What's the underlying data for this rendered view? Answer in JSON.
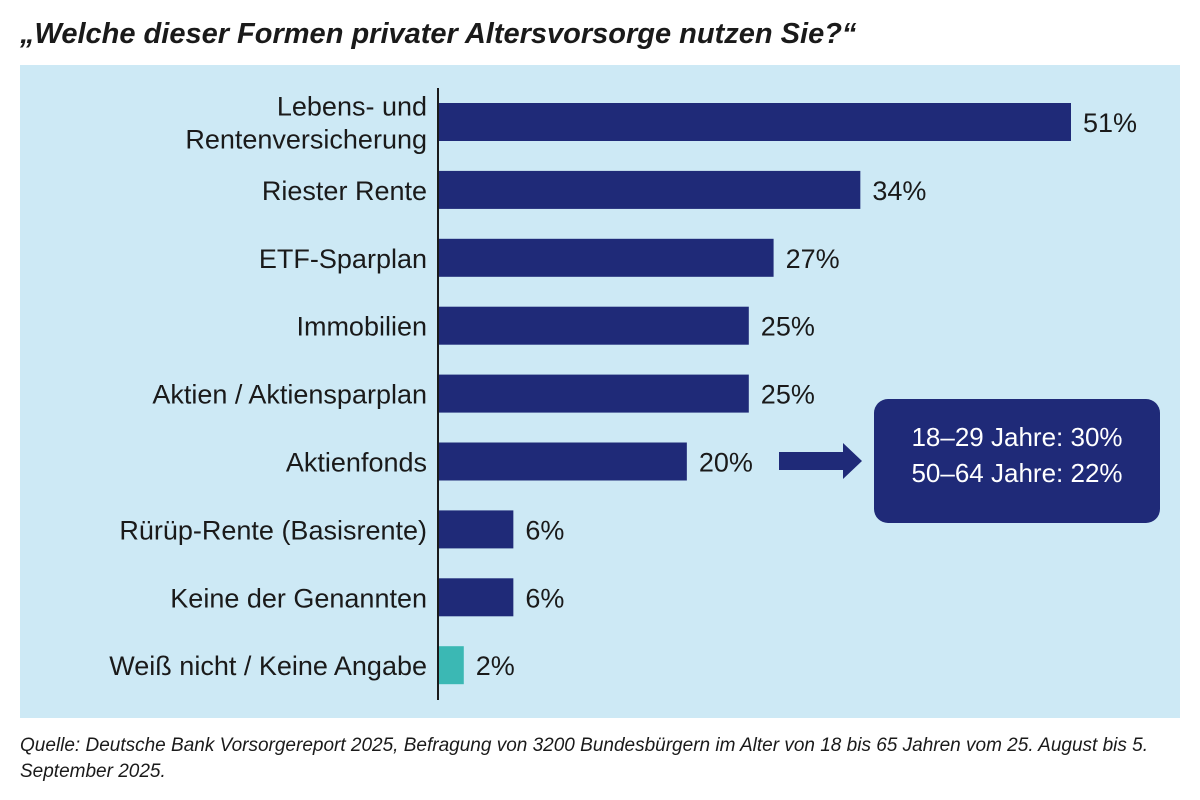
{
  "title": "„Welche dieser Formen privater Altersvorsorge nutzen Sie?“",
  "source": "Quelle: Deutsche Bank Vorsorgereport 2025, Befragung von 3200 Bundesbürgern im Alter von 18 bis 65 Jahren vom 25. August bis 5. September 2025.",
  "callout": {
    "line1": "18–29 Jahre: 30%",
    "line2": "50–64 Jahre: 22%"
  },
  "colors": {
    "bar": "#1f2a78",
    "highlight": "#3bb8b4",
    "background": "#cde9f5"
  },
  "chart_data": {
    "type": "bar",
    "orientation": "horizontal",
    "title": "„Welche dieser Formen privater Altersvorsorge nutzen Sie?“",
    "categories": [
      [
        "Lebens- und",
        "Rentenversicherung"
      ],
      [
        "Riester Rente"
      ],
      [
        "ETF-Sparplan"
      ],
      [
        "Immobilien"
      ],
      [
        "Aktien / Aktiensparplan"
      ],
      [
        "Aktienfonds"
      ],
      [
        "Rürüp-Rente (Basisrente)"
      ],
      [
        "Keine der Genannten"
      ],
      [
        "Weiß nicht / Keine Angabe"
      ]
    ],
    "values": [
      51,
      34,
      27,
      25,
      25,
      20,
      6,
      6,
      2
    ],
    "value_labels": [
      "51%",
      "34%",
      "27%",
      "25%",
      "25%",
      "20%",
      "6%",
      "6%",
      "2%"
    ],
    "highlight_index": 8,
    "xlim": [
      0,
      51
    ],
    "grid": false
  }
}
